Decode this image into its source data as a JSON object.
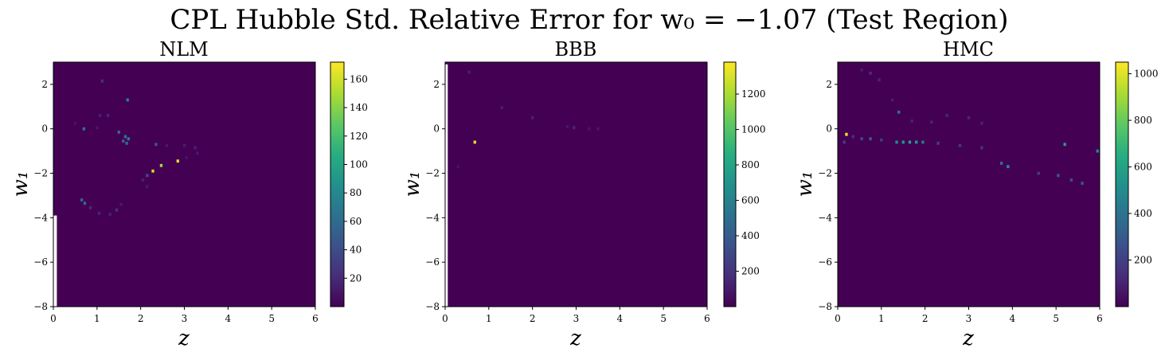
{
  "figure": {
    "title_text": "CPL Hubble Std. Relative Error for w₀ = −1.07 (Test Region)",
    "background": "#ffffff"
  },
  "chart_data": [
    {
      "type": "heatmap",
      "title": "NLM",
      "xlabel": "z",
      "ylabel": "w₁",
      "xlim": [
        0,
        6
      ],
      "ylim": [
        -8,
        3
      ],
      "xticks": [
        0,
        1,
        2,
        3,
        4,
        5,
        6
      ],
      "yticks": [
        -8,
        -6,
        -4,
        -2,
        0,
        2
      ],
      "colormap": "viridis",
      "background_value_color": "#440154",
      "colorbar": {
        "min": 0,
        "max": 172,
        "ticks": [
          20,
          40,
          60,
          80,
          100,
          120,
          140,
          160
        ]
      },
      "masked_regions": [
        {
          "x": [
            0.0,
            0.08
          ],
          "y": [
            -8.0,
            -3.9
          ]
        }
      ],
      "points": [
        {
          "x": 1.12,
          "y": 2.15,
          "v": 25
        },
        {
          "x": 1.7,
          "y": 1.3,
          "v": 80
        },
        {
          "x": 1.07,
          "y": 0.6,
          "v": 15
        },
        {
          "x": 1.25,
          "y": 0.6,
          "v": 18
        },
        {
          "x": 0.5,
          "y": 0.25,
          "v": 10
        },
        {
          "x": 0.7,
          "y": 0.0,
          "v": 70
        },
        {
          "x": 1.0,
          "y": 0.05,
          "v": 12
        },
        {
          "x": 1.5,
          "y": -0.15,
          "v": 60
        },
        {
          "x": 1.65,
          "y": -0.35,
          "v": 70
        },
        {
          "x": 1.72,
          "y": -0.45,
          "v": 75
        },
        {
          "x": 1.6,
          "y": -0.55,
          "v": 55
        },
        {
          "x": 1.68,
          "y": -0.65,
          "v": 60
        },
        {
          "x": 2.35,
          "y": -0.7,
          "v": 50
        },
        {
          "x": 2.6,
          "y": -0.75,
          "v": 12
        },
        {
          "x": 3.0,
          "y": -0.75,
          "v": 14
        },
        {
          "x": 3.25,
          "y": -0.85,
          "v": 15
        },
        {
          "x": 3.3,
          "y": -1.1,
          "v": 12
        },
        {
          "x": 3.05,
          "y": -1.3,
          "v": 10
        },
        {
          "x": 2.85,
          "y": -1.45,
          "v": 165
        },
        {
          "x": 2.47,
          "y": -1.65,
          "v": 150
        },
        {
          "x": 2.28,
          "y": -1.9,
          "v": 160
        },
        {
          "x": 2.15,
          "y": -2.1,
          "v": 40
        },
        {
          "x": 2.05,
          "y": -2.3,
          "v": 15
        },
        {
          "x": 2.15,
          "y": -2.6,
          "v": 12
        },
        {
          "x": 0.65,
          "y": -3.2,
          "v": 55
        },
        {
          "x": 0.72,
          "y": -3.35,
          "v": 65
        },
        {
          "x": 0.85,
          "y": -3.55,
          "v": 20
        },
        {
          "x": 1.05,
          "y": -3.8,
          "v": 18
        },
        {
          "x": 1.3,
          "y": -3.85,
          "v": 15
        },
        {
          "x": 1.45,
          "y": -3.65,
          "v": 25
        },
        {
          "x": 1.55,
          "y": -3.4,
          "v": 12
        }
      ]
    },
    {
      "type": "heatmap",
      "title": "BBB",
      "xlabel": "z",
      "ylabel": "w₁",
      "xlim": [
        0,
        6
      ],
      "ylim": [
        -8,
        3
      ],
      "xticks": [
        0,
        1,
        2,
        3,
        4,
        5,
        6
      ],
      "yticks": [
        -8,
        -6,
        -4,
        -2,
        0,
        2
      ],
      "colormap": "viridis",
      "background_value_color": "#440154",
      "colorbar": {
        "min": 0,
        "max": 1380,
        "ticks": [
          200,
          400,
          600,
          800,
          1000,
          1200
        ]
      },
      "masked_regions": [
        {
          "x": [
            0.0,
            0.06
          ],
          "y": [
            -8.0,
            2.9
          ]
        }
      ],
      "points": [
        {
          "x": 0.55,
          "y": 2.55,
          "v": 120
        },
        {
          "x": 1.3,
          "y": 0.95,
          "v": 120
        },
        {
          "x": 2.0,
          "y": 0.5,
          "v": 130
        },
        {
          "x": 2.8,
          "y": 0.1,
          "v": 90
        },
        {
          "x": 2.95,
          "y": 0.05,
          "v": 160
        },
        {
          "x": 3.3,
          "y": 0.0,
          "v": 80
        },
        {
          "x": 3.5,
          "y": 0.0,
          "v": 90
        },
        {
          "x": 0.68,
          "y": -0.6,
          "v": 1330
        },
        {
          "x": 0.3,
          "y": -1.7,
          "v": 70
        }
      ]
    },
    {
      "type": "heatmap",
      "title": "HMC",
      "xlabel": "z",
      "ylabel": "w₁",
      "xlim": [
        0,
        6
      ],
      "ylim": [
        -8,
        3
      ],
      "xticks": [
        0,
        1,
        2,
        3,
        4,
        5,
        6
      ],
      "yticks": [
        -8,
        -6,
        -4,
        -2,
        0,
        2
      ],
      "colormap": "viridis",
      "background_value_color": "#440154",
      "colorbar": {
        "min": 0,
        "max": 1050,
        "ticks": [
          200,
          400,
          600,
          800,
          1000
        ]
      },
      "masked_regions": [],
      "points": [
        {
          "x": 0.55,
          "y": 2.65,
          "v": 90
        },
        {
          "x": 0.75,
          "y": 2.5,
          "v": 140
        },
        {
          "x": 0.95,
          "y": 2.2,
          "v": 110
        },
        {
          "x": 1.25,
          "y": 1.3,
          "v": 90
        },
        {
          "x": 1.4,
          "y": 0.75,
          "v": 400
        },
        {
          "x": 1.7,
          "y": 0.35,
          "v": 100
        },
        {
          "x": 2.15,
          "y": 0.3,
          "v": 110
        },
        {
          "x": 2.5,
          "y": 0.6,
          "v": 120
        },
        {
          "x": 3.0,
          "y": 0.5,
          "v": 110
        },
        {
          "x": 3.3,
          "y": 0.25,
          "v": 100
        },
        {
          "x": 0.2,
          "y": -0.25,
          "v": 1020
        },
        {
          "x": 0.35,
          "y": -0.35,
          "v": 150
        },
        {
          "x": 0.55,
          "y": -0.45,
          "v": 250
        },
        {
          "x": 0.75,
          "y": -0.45,
          "v": 320
        },
        {
          "x": 1.0,
          "y": -0.5,
          "v": 200
        },
        {
          "x": 1.35,
          "y": -0.6,
          "v": 520
        },
        {
          "x": 1.5,
          "y": -0.6,
          "v": 560
        },
        {
          "x": 1.65,
          "y": -0.6,
          "v": 600
        },
        {
          "x": 1.8,
          "y": -0.6,
          "v": 580
        },
        {
          "x": 1.95,
          "y": -0.6,
          "v": 450
        },
        {
          "x": 2.3,
          "y": -0.65,
          "v": 200
        },
        {
          "x": 2.8,
          "y": -0.75,
          "v": 180
        },
        {
          "x": 3.3,
          "y": -0.85,
          "v": 170
        },
        {
          "x": 5.2,
          "y": -0.7,
          "v": 600
        },
        {
          "x": 5.95,
          "y": -1.0,
          "v": 500
        },
        {
          "x": 3.75,
          "y": -1.55,
          "v": 400
        },
        {
          "x": 3.9,
          "y": -1.7,
          "v": 520
        },
        {
          "x": 4.6,
          "y": -2.0,
          "v": 200
        },
        {
          "x": 5.05,
          "y": -2.1,
          "v": 300
        },
        {
          "x": 5.35,
          "y": -2.3,
          "v": 250
        },
        {
          "x": 5.6,
          "y": -2.45,
          "v": 300
        },
        {
          "x": 0.15,
          "y": -0.6,
          "v": 200
        }
      ]
    }
  ]
}
